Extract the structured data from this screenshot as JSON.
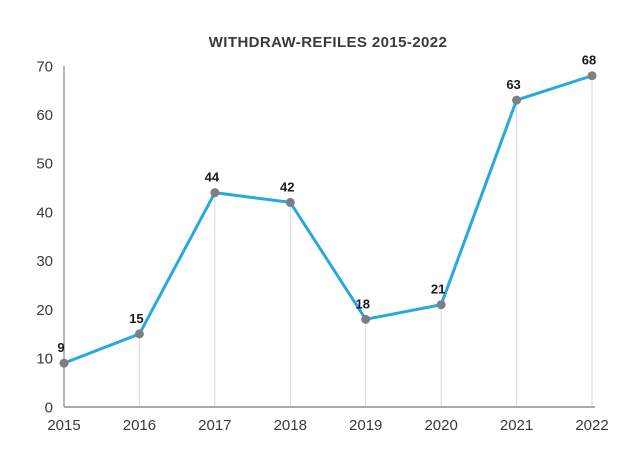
{
  "chart_data": {
    "type": "line",
    "title": "WITHDRAW-REFILES 2015-2022",
    "categories": [
      "2015",
      "2016",
      "2017",
      "2018",
      "2019",
      "2020",
      "2021",
      "2022"
    ],
    "values": [
      9,
      15,
      44,
      42,
      18,
      21,
      63,
      68
    ],
    "point_labels": [
      "9",
      "15",
      "44",
      "42",
      "18",
      "21",
      "63",
      "68"
    ],
    "xlabel": "",
    "ylabel": "",
    "ylim": [
      0,
      70
    ],
    "yticks": [
      0,
      10,
      20,
      30,
      40,
      50,
      60,
      70
    ],
    "grid": "vertical drop lines from each point to x-axis",
    "legend_position": "none",
    "colors": {
      "line": "#29a8e0",
      "marker": "#7f7f7f",
      "axis": "#9e9e9e",
      "drop_line": "#d9d9d9",
      "point_label": "#1a1a1a",
      "tick_label": "#3a3a3a",
      "title": "#3b3b3b",
      "background": "#ffffff"
    }
  }
}
